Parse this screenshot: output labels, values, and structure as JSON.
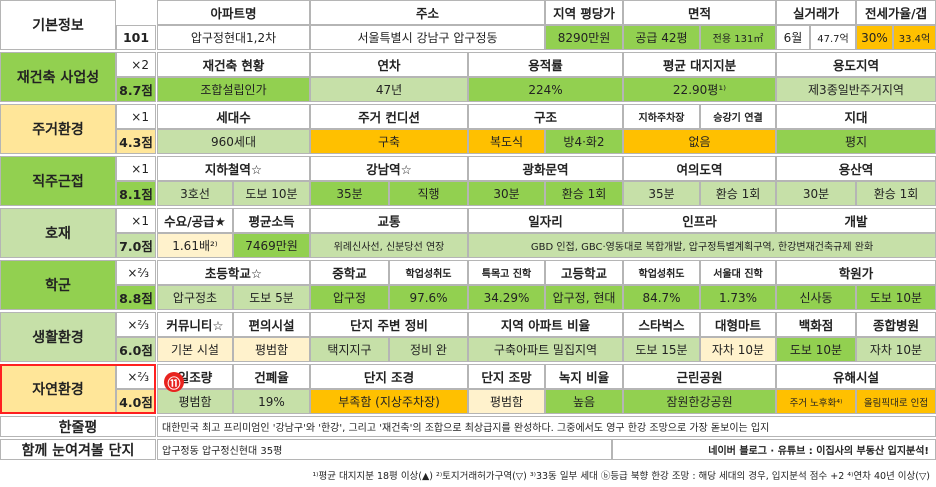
{
  "sections": [
    {
      "label": "기본정보",
      "id": "101",
      "headers": [
        "아파트명",
        "주소",
        "지역 평당가",
        "면적",
        "실거래가",
        "전세가율/갭"
      ],
      "values": [
        "압구정현대1,2차",
        "서울특별시 강남구 압구정동",
        "8290만원",
        "공급 42평",
        "전용 131㎡",
        "6월",
        "47.7억",
        "30%",
        "33.4억"
      ]
    },
    {
      "label": "재건축 사업성",
      "weight": "×2",
      "score": "8.7점",
      "headers": [
        "재건축 현황",
        "연차",
        "용적률",
        "평균 대지지분",
        "용도지역"
      ],
      "values": [
        "조합설립인가",
        "47년",
        "224%",
        "22.90평¹⁾",
        "제3종일반주거지역"
      ]
    },
    {
      "label": "주거환경",
      "weight": "×1",
      "score": "4.3점",
      "headers": [
        "세대수",
        "주거 컨디션",
        "구조",
        "지하주차장",
        "승강기 연결",
        "지대"
      ],
      "values": [
        "960세대",
        "구축",
        "복도식",
        "방4·화2",
        "없음",
        "평지"
      ]
    },
    {
      "label": "직주근접",
      "weight": "×1",
      "score": "8.1점",
      "headers": [
        "지하철역☆",
        "강남역☆",
        "광화문역",
        "여의도역",
        "용산역"
      ],
      "values": [
        "3호선",
        "도보 10분",
        "35분",
        "직행",
        "30분",
        "환승 1회",
        "35분",
        "환승 1회",
        "30분",
        "환승 1회"
      ]
    },
    {
      "label": "호재",
      "weight": "×1",
      "score": "7.0점",
      "headers": [
        "수요/공급★",
        "평균소득",
        "교통",
        "일자리",
        "인프라",
        "개발"
      ],
      "values": [
        "1.61배²⁾",
        "7469만원",
        "위례신사선, 신분당선 연장",
        "GBD 인접, GBC·영동대로 복합개발, 압구정특별계획구역, 한강변재건축규제 완화"
      ]
    },
    {
      "label": "학군",
      "weight": "×⅔",
      "score": "8.8점",
      "headers": [
        "초등학교☆",
        "중학교",
        "학업성취도",
        "특목고 진학",
        "고등학교",
        "학업성취도",
        "서울대 진학",
        "학원가"
      ],
      "values": [
        "압구정초",
        "도보 5분",
        "압구정",
        "97.6%",
        "34.29%",
        "압구정, 현대",
        "84.7%",
        "1.73%",
        "신사동",
        "도보 10분"
      ]
    },
    {
      "label": "생활환경",
      "weight": "×⅔",
      "score": "6.0점",
      "headers": [
        "커뮤니티☆",
        "편의시설",
        "단지 주변 정비",
        "지역 아파트 비율",
        "스타벅스",
        "대형마트",
        "백화점",
        "종합병원"
      ],
      "values": [
        "기본 시설",
        "평범함",
        "택지지구",
        "정비 완",
        "구축아파트 밀집지역",
        "도보 15분",
        "자차 10분",
        "도보 10분",
        "자차 10분"
      ]
    },
    {
      "label": "자연환경",
      "weight": "×⅔",
      "score": "4.0점",
      "annotation": "⑪",
      "headers": [
        "일조량",
        "건폐율",
        "단지 조경",
        "단지 조망",
        "녹지 비율",
        "근린공원",
        "유해시설"
      ],
      "values": [
        "평범함",
        "19%",
        "부족함 (지상주차장)",
        "평범함",
        "높음",
        "잠원한강공원",
        "주거 노후화⁴⁾",
        "올림픽대로 인접"
      ]
    }
  ],
  "review": {
    "label": "한줄평",
    "text": "대한민국 최고 프리미엄인 '강남구'와 '한강', 그리고 '재건축'의 조합으로 최상급지를 완성하다. 그중에서도 영구 한강 조망으로 가장 돋보이는 입지"
  },
  "related": {
    "label": "함께 눈여겨볼 단지",
    "text": "압구정동 압구정신현대 35평",
    "source": "네이버 블로그 · 유튜브 : 이집사의 부동산 입지분석!"
  },
  "footnote": "¹⁾평균 대지지분 18평 이상(▲) ²⁾토지거래허가구역(▽) ³⁾33동 일부 세대 ⓑ등급 북향 한강 조망 : 해당 세대의 경우, 입지분석 점수 +2 ⁴⁾연차 40년 이상(▽)"
}
